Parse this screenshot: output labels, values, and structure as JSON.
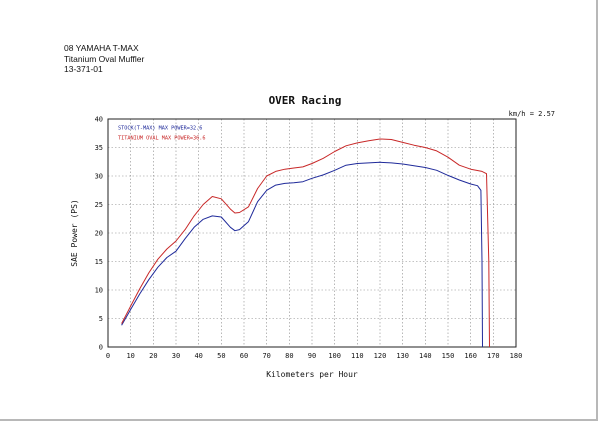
{
  "spec_lines": [
    "08 YAMAHA T-MAX",
    "Titanium Oval Muffler",
    "13-371-01"
  ],
  "chart_data": {
    "type": "line",
    "title": "OVER Racing",
    "xlabel": "Kilometers per Hour",
    "ylabel": "SAE Power (PS)",
    "xlim": [
      0,
      180
    ],
    "ylim": [
      0,
      40
    ],
    "x_ticks": [
      0,
      10,
      20,
      30,
      40,
      50,
      60,
      70,
      80,
      90,
      100,
      110,
      120,
      130,
      140,
      150,
      160,
      170,
      180
    ],
    "y_ticks": [
      0,
      5,
      10,
      15,
      20,
      25,
      30,
      35,
      40
    ],
    "grid": true,
    "ratio_note": "km/h = 2.57",
    "legend": {
      "placement": "top-left"
    },
    "series": [
      {
        "name": "STOCK",
        "legend_label": "STOCK(T-MAX) MAX POWER=32.6",
        "color": "#1f2a9a",
        "x": [
          6,
          10,
          14,
          18,
          22,
          26,
          30,
          34,
          38,
          42,
          46,
          50,
          54,
          56,
          58,
          62,
          66,
          70,
          74,
          78,
          82,
          86,
          90,
          95,
          100,
          105,
          110,
          115,
          120,
          125,
          130,
          135,
          140,
          145,
          150,
          155,
          160,
          163,
          164.5,
          165,
          165.2
        ],
        "y": [
          3.8,
          6.6,
          9.3,
          11.8,
          14,
          15.7,
          16.8,
          19,
          21,
          22.4,
          23,
          22.8,
          21,
          20.4,
          20.6,
          22,
          25.5,
          27.5,
          28.4,
          28.7,
          28.8,
          29,
          29.6,
          30.2,
          31,
          31.9,
          32.2,
          32.3,
          32.4,
          32.3,
          32.1,
          31.8,
          31.5,
          31,
          30.1,
          29.3,
          28.6,
          28.3,
          27.5,
          15,
          0
        ]
      },
      {
        "name": "OVER Racing",
        "legend_label": "TITANIUM OVAL MAX POWER=36.6",
        "color": "#c82828",
        "x": [
          6,
          10,
          14,
          18,
          22,
          26,
          30,
          34,
          38,
          42,
          46,
          50,
          54,
          56,
          58,
          62,
          66,
          70,
          74,
          78,
          82,
          86,
          90,
          95,
          100,
          105,
          110,
          115,
          120,
          125,
          130,
          135,
          140,
          145,
          150,
          155,
          160,
          165,
          167,
          168,
          168.3
        ],
        "y": [
          4.1,
          7.2,
          10.2,
          13,
          15.4,
          17.2,
          18.6,
          20.6,
          23,
          25,
          26.4,
          26,
          24.2,
          23.5,
          23.6,
          24.6,
          27.8,
          30,
          30.8,
          31.2,
          31.4,
          31.6,
          32.2,
          33.1,
          34.3,
          35.3,
          35.8,
          36.2,
          36.5,
          36.4,
          35.9,
          35.4,
          35,
          34.4,
          33.3,
          31.9,
          31.2,
          30.8,
          30.4,
          15,
          0
        ]
      }
    ]
  }
}
